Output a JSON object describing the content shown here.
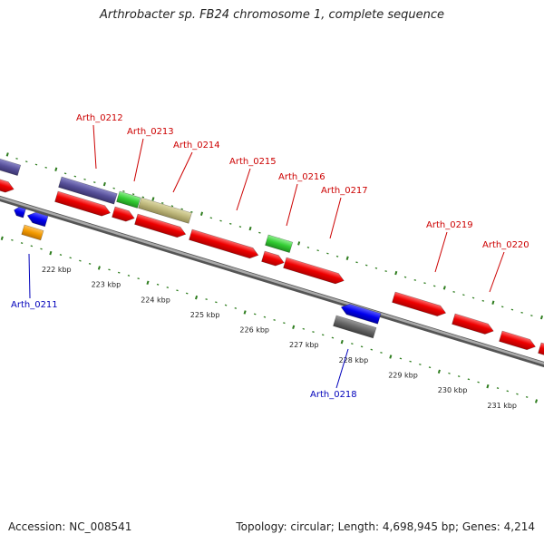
{
  "title": "Arthrobacter sp. FB24 chromosome 1, complete sequence",
  "footer": {
    "accession": "Accession: NC_008541",
    "topology": "Topology: circular; Length: 4,698,945 bp; Genes: 4,214"
  },
  "colors": {
    "forward_label": "#cc0000",
    "reverse_label": "#0000bb",
    "cds": "#ee0000",
    "tick": "#2e7d1e",
    "backbone": "#888888"
  },
  "kbp_ticks": [
    "222 kbp",
    "223 kbp",
    "224 kbp",
    "225 kbp",
    "226 kbp",
    "227 kbp",
    "228 kbp",
    "229 kbp",
    "230 kbp",
    "231 kbp"
  ],
  "gene_labels": [
    {
      "text": "Arth_0211",
      "strand": "reverse"
    },
    {
      "text": "Arth_0212",
      "strand": "forward"
    },
    {
      "text": "Arth_0213",
      "strand": "forward"
    },
    {
      "text": "Arth_0214",
      "strand": "forward"
    },
    {
      "text": "Arth_0215",
      "strand": "forward"
    },
    {
      "text": "Arth_0216",
      "strand": "forward"
    },
    {
      "text": "Arth_0217",
      "strand": "forward"
    },
    {
      "text": "Arth_0218",
      "strand": "reverse"
    },
    {
      "text": "Arth_0219",
      "strand": "forward"
    },
    {
      "text": "Arth_0220",
      "strand": "forward"
    }
  ]
}
